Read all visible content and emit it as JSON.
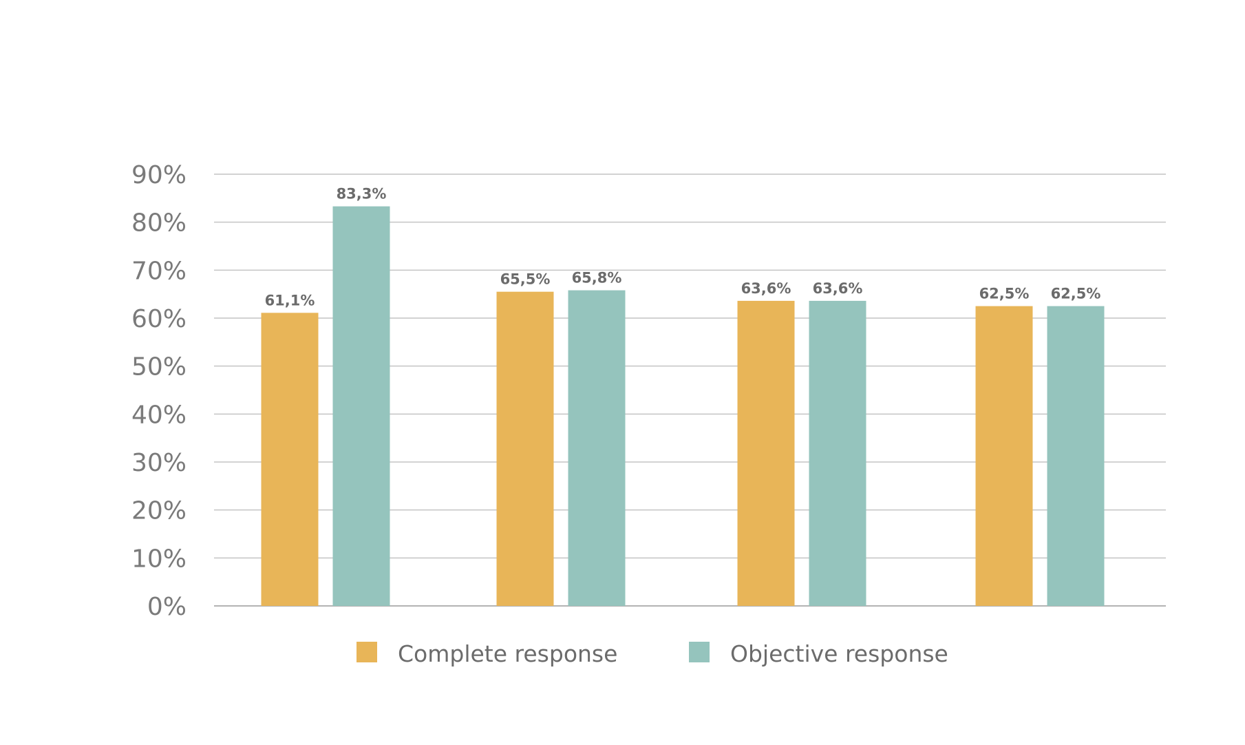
{
  "chart_data": {
    "type": "bar",
    "categories": [
      "",
      "",
      "",
      ""
    ],
    "series": [
      {
        "name": "Complete response",
        "color": "#E8B558",
        "values": [
          61.1,
          65.5,
          63.6,
          62.5
        ],
        "labels": [
          "61,1%",
          "65,5%",
          "63,6%",
          "62,5%"
        ]
      },
      {
        "name": "Objective response",
        "color": "#95C4BD",
        "values": [
          83.3,
          65.8,
          63.6,
          62.5
        ],
        "labels": [
          "83,3%",
          "65,8%",
          "63,6%",
          "62,5%"
        ]
      }
    ],
    "ylim": [
      0,
      90
    ],
    "yticks": [
      0,
      10,
      20,
      30,
      40,
      50,
      60,
      70,
      80,
      90
    ],
    "ytick_labels": [
      "0%",
      "10%",
      "20%",
      "30%",
      "40%",
      "50%",
      "60%",
      "70%",
      "80%",
      "90%"
    ],
    "grid": true,
    "legend_position": "bottom-center",
    "title": "",
    "xlabel": "",
    "ylabel": ""
  }
}
